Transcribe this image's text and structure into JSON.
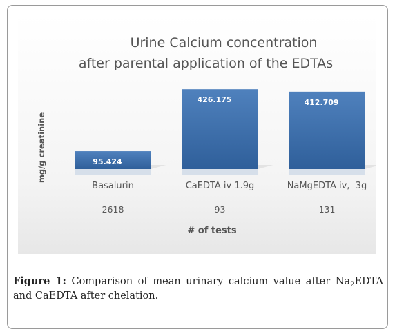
{
  "chart_data": {
    "type": "bar",
    "title_lines": [
      "Urine Calcium concentration",
      "after parental application of the EDTAs"
    ],
    "ylabel": "mg/g creatinine",
    "xlabel": "# of tests",
    "categories": [
      "Basalurin",
      "CaEDTA iv 1.9g",
      "NaMgEDTA iv,  3g"
    ],
    "test_counts": [
      "2618",
      "93",
      "131"
    ],
    "values": [
      95.424,
      426.175,
      412.709
    ],
    "value_labels": [
      "95.424",
      "426.175",
      "412.709"
    ],
    "ylim": [
      0,
      460
    ],
    "grid": false,
    "legend": "none",
    "colors": {
      "bar_top": "#4f81bd",
      "bar_bottom": "#2f5f9a",
      "label": "#ffffff",
      "text": "#555555"
    }
  },
  "caption": {
    "label": "Figure 1:",
    "text_before_sub": "Comparison of mean urinary calcium value after Na",
    "sub": "2",
    "text_after_sub": "EDTA and CaEDTA after chelation."
  }
}
